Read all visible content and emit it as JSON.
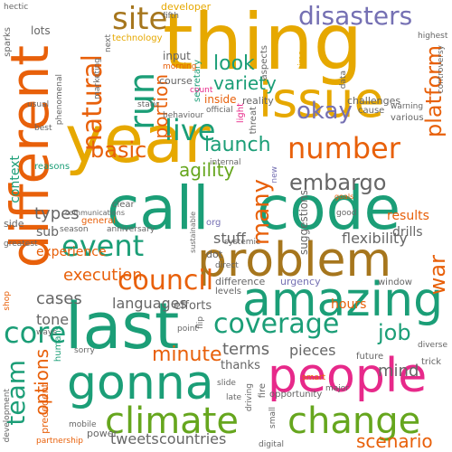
{
  "palette": {
    "gold": "#e6a800",
    "orange": "#e8600a",
    "teal": "#1b9e77",
    "green": "#66a61e",
    "purple": "#7570b3",
    "pink": "#e7298a",
    "brown": "#a6761d",
    "gray": "#666666"
  },
  "words": {
    "thing": "thing",
    "year": "year",
    "call": "call",
    "code": "code",
    "issue": "issue",
    "different": "different",
    "problem": "problem",
    "amazing": "amazing",
    "last": "last",
    "people": "people",
    "gonna": "gonna",
    "climate": "climate",
    "change": "change",
    "number": "number",
    "okay": "okay",
    "disasters": "disasters",
    "site": "site",
    "run": "run",
    "live": "live",
    "natural": "natural",
    "event": "event",
    "council": "council",
    "coverage": "coverage",
    "basic": "basic",
    "agility": "agility",
    "embargo": "embargo",
    "launch": "launch",
    "look": "look",
    "variety": "variety",
    "platform": "platform",
    "many": "many",
    "war": "war",
    "core": "core",
    "team": "team",
    "minute": "minute",
    "job": "job",
    "scenario": "scenario",
    "execution": "execution",
    "languages": "languages",
    "cases": "cases",
    "tone": "tone",
    "options": "options",
    "types": "types",
    "portion": "portion",
    "context": "context",
    "sub": "sub",
    "experience": "experience",
    "stuff": "stuff",
    "mind": "mind",
    "terms": "terms",
    "pieces": "pieces",
    "countries": "countries",
    "tweets": "tweets",
    "flexibility": "flexibility",
    "results": "results",
    "drills": "drills",
    "suggestions": "suggestions",
    "hours": "hours",
    "thanks": "thanks",
    "efforts": "efforts",
    "developer": "developer",
    "technology": "technology",
    "input": "input",
    "course": "course",
    "inside": "inside",
    "reality": "reality",
    "challenges": "challenges",
    "cause": "cause",
    "secretary": "secretary",
    "aspects": "aspects",
    "data": "data",
    "time": "time",
    "highest": "highest",
    "controversy": "controversy",
    "various": "various",
    "warning": "warning",
    "lots": "lots",
    "sparks": "sparks",
    "hectic": "hectic",
    "fifth": "fifth",
    "next": "next",
    "morning": "morning",
    "marketing": "marketing",
    "phenomenal": "phenomenal",
    "static": "static",
    "count": "count",
    "official": "official",
    "behaviour": "behaviour",
    "light": "light",
    "threat": "threat",
    "usual": "usual",
    "best": "best",
    "reasons": "reasons",
    "communications": "communications",
    "clear": "clear",
    "general": "general",
    "org": "org",
    "internal": "internal",
    "new": "new",
    "goals": "goals",
    "good": "good",
    "side": "side",
    "season": "season",
    "anniversary": "anniversary",
    "greatest": "greatest",
    "sustainable": "sustainable",
    "systemic": "systemic",
    "dot": "dot",
    "direct": "direct",
    "difference": "difference",
    "urgency": "urgency",
    "window": "window",
    "levels": "levels",
    "shop": "shop",
    "ways": "ways",
    "development": "development",
    "humans": "humans",
    "flip": "flip",
    "point": "point",
    "diverse": "diverse",
    "future": "future",
    "trick": "trick",
    "sorry": "sorry",
    "slide": "slide",
    "late": "late",
    "smart": "smart",
    "major": "major",
    "opportunity": "opportunity",
    "fire": "fire",
    "driving": "driving",
    "small": "small",
    "digital": "digital",
    "precedent": "precedent",
    "mobile": "mobile",
    "partnership": "partnership",
    "power": "power"
  }
}
